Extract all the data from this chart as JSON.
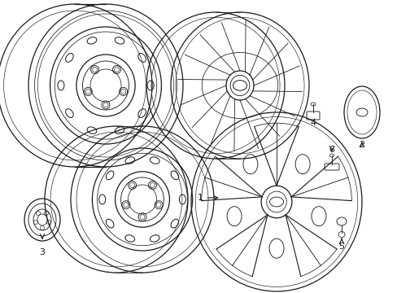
{
  "bg_color": "#ffffff",
  "line_color": "#1a1a1a",
  "lw": 0.9,
  "fig_width": 4.89,
  "fig_height": 3.6
}
